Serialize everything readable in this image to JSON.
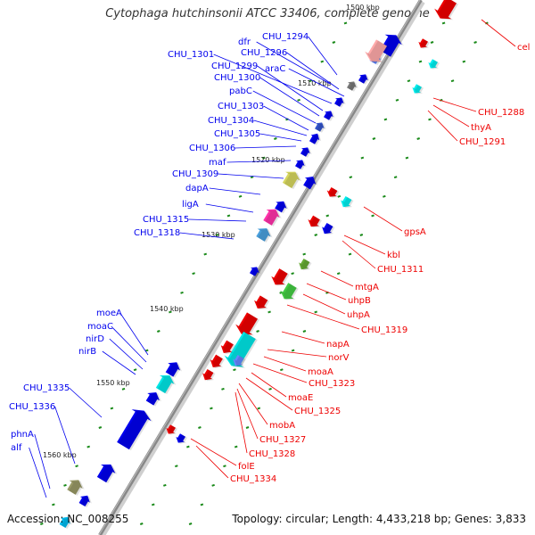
{
  "title": "Cytophaga hutchinsonii ATCC 33406, complete genome",
  "footer": {
    "accession": "Accession: NC_008255",
    "summary": "Topology: circular; Length: 4,433,218 bp; Genes: 3,833"
  },
  "colors": {
    "forward": "#0000ee",
    "reverse": "#ee0000",
    "scale_tick": "#1a8a1a",
    "backbone": "#888888"
  },
  "scale_labels": [
    "1500 kbp",
    "1510 kbp",
    "1520 kbp",
    "1530 kbp",
    "1540 kbp",
    "1550 kbp",
    "1560 kbp"
  ],
  "forward_labels": [
    "CHU_1294",
    "dfr",
    "CHU_1296",
    "araC",
    "CHU_1301",
    "CHU_1299",
    "CHU_1300",
    "pabC",
    "CHU_1303",
    "CHU_1304",
    "CHU_1305",
    "CHU_1306",
    "maf",
    "CHU_1309",
    "dapA",
    "ligA",
    "CHU_1315",
    "CHU_1318",
    "moeA",
    "moaC",
    "nirD",
    "nirB",
    "CHU_1335",
    "CHU_1336",
    "phnA",
    "alf"
  ],
  "reverse_labels": [
    "cel",
    "CHU_1288",
    "thyA",
    "CHU_1291",
    "gpsA",
    "kbl",
    "CHU_1311",
    "mtgA",
    "uhpB",
    "uhpA",
    "CHU_1319",
    "napA",
    "norV",
    "moaA",
    "CHU_1323",
    "moaE",
    "CHU_1325",
    "mobA",
    "CHU_1327",
    "CHU_1328",
    "folE",
    "CHU_1334"
  ]
}
